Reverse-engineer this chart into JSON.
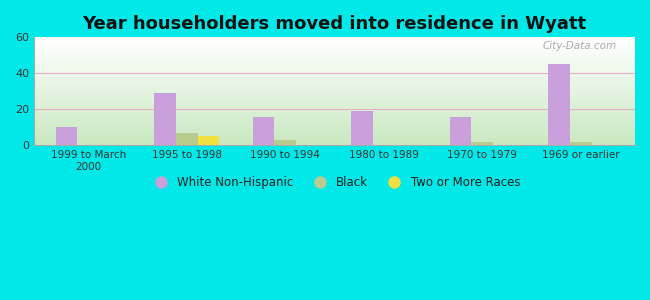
{
  "title": "Year householders moved into residence in Wyatt",
  "categories": [
    "1999 to March\n2000",
    "1995 to 1998",
    "1990 to 1994",
    "1980 to 1989",
    "1970 to 1979",
    "1969 or earlier"
  ],
  "white_non_hispanic": [
    10,
    29,
    16,
    19,
    16,
    45
  ],
  "black": [
    0,
    7,
    3,
    0,
    2,
    2
  ],
  "two_or_more_races": [
    0,
    5,
    0,
    0,
    0,
    0
  ],
  "white_color": "#c9a0dc",
  "black_color": "#b8cc90",
  "two_color": "#f0e040",
  "ylim": [
    0,
    60
  ],
  "yticks": [
    0,
    20,
    40,
    60
  ],
  "bg_top": "#ffffff",
  "bg_bottom": "#c8e8c0",
  "outer_bg": "#00e8e8",
  "bar_width": 0.22,
  "watermark": "City-Data.com",
  "grid_color": "#e8b0c8"
}
